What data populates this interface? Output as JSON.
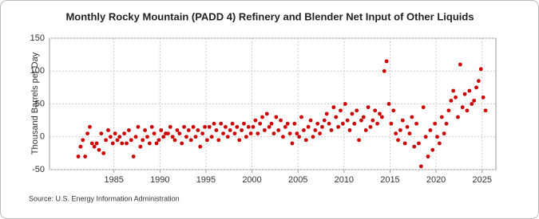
{
  "chart_data": {
    "type": "scatter",
    "title": "Monthly Rocky Mountain (PADD 4) Refinery and Blender Net Input of Other Liquids",
    "ylabel": "Thousand Barrels per Day",
    "source": "Source: U.S. Energy Information Administration",
    "color": "#cc0000",
    "grid": true,
    "xlim": [
      1978,
      2026.5
    ],
    "xticks": [
      1985,
      1990,
      1995,
      2000,
      2005,
      2010,
      2015,
      2020,
      2025
    ],
    "ylim": [
      -50,
      150
    ],
    "yticks": [
      -50,
      0,
      50,
      100,
      150
    ],
    "x": [
      1981.125,
      1981.375,
      1981.625,
      1981.875,
      1982.125,
      1982.375,
      1982.625,
      1982.875,
      1983.125,
      1983.375,
      1983.625,
      1983.875,
      1984.125,
      1984.375,
      1984.625,
      1984.875,
      1985.125,
      1985.375,
      1985.625,
      1985.875,
      1986.125,
      1986.375,
      1986.625,
      1986.875,
      1987.125,
      1987.375,
      1987.625,
      1987.875,
      1988.125,
      1988.375,
      1988.625,
      1988.875,
      1989.125,
      1989.375,
      1989.625,
      1989.875,
      1990.125,
      1990.375,
      1990.625,
      1990.875,
      1991.125,
      1991.375,
      1991.625,
      1991.875,
      1992.125,
      1992.375,
      1992.625,
      1992.875,
      1993.125,
      1993.375,
      1993.625,
      1993.875,
      1994.125,
      1994.375,
      1994.625,
      1994.875,
      1995.125,
      1995.375,
      1995.625,
      1995.875,
      1996.125,
      1996.375,
      1996.625,
      1996.875,
      1997.125,
      1997.375,
      1997.625,
      1997.875,
      1998.125,
      1998.375,
      1998.625,
      1998.875,
      1999.125,
      1999.375,
      1999.625,
      1999.875,
      2000.125,
      2000.375,
      2000.625,
      2000.875,
      2001.125,
      2001.375,
      2001.625,
      2001.875,
      2002.125,
      2002.375,
      2002.625,
      2002.875,
      2003.125,
      2003.375,
      2003.625,
      2003.875,
      2004.125,
      2004.375,
      2004.625,
      2004.875,
      2005.125,
      2005.375,
      2005.625,
      2005.875,
      2006.125,
      2006.375,
      2006.625,
      2006.875,
      2007.125,
      2007.375,
      2007.625,
      2007.875,
      2008.125,
      2008.375,
      2008.625,
      2008.875,
      2009.125,
      2009.375,
      2009.625,
      2009.875,
      2010.125,
      2010.375,
      2010.625,
      2010.875,
      2011.125,
      2011.375,
      2011.625,
      2011.875,
      2012.125,
      2012.375,
      2012.625,
      2012.875,
      2013.125,
      2013.375,
      2013.625,
      2013.875,
      2014.125,
      2014.375,
      2014.625,
      2014.875,
      2015.125,
      2015.375,
      2015.625,
      2015.875,
      2016.125,
      2016.375,
      2016.625,
      2016.875,
      2017.125,
      2017.375,
      2017.625,
      2017.875,
      2018.125,
      2018.375,
      2018.625,
      2018.875,
      2019.125,
      2019.375,
      2019.625,
      2019.875,
      2020.125,
      2020.375,
      2020.625,
      2020.875,
      2021.125,
      2021.375,
      2021.625,
      2021.875,
      2022.125,
      2022.375,
      2022.625,
      2022.875,
      2023.125,
      2023.375,
      2023.625,
      2023.875,
      2024.125,
      2024.375,
      2024.625,
      2024.875,
      2025.125,
      2025.375
    ],
    "values": [
      -30,
      -15,
      -5,
      -30,
      5,
      15,
      -10,
      -15,
      -10,
      -20,
      5,
      -25,
      -5,
      10,
      0,
      -10,
      5,
      -5,
      0,
      -10,
      5,
      -10,
      10,
      -5,
      -30,
      0,
      15,
      -15,
      -5,
      10,
      0,
      -10,
      15,
      5,
      -10,
      -5,
      10,
      0,
      5,
      5,
      15,
      0,
      -5,
      10,
      5,
      -10,
      15,
      0,
      10,
      -5,
      15,
      0,
      10,
      -15,
      5,
      15,
      -5,
      15,
      0,
      20,
      10,
      -5,
      20,
      5,
      15,
      0,
      10,
      20,
      5,
      15,
      -5,
      10,
      20,
      0,
      15,
      5,
      15,
      25,
      5,
      20,
      30,
      10,
      35,
      15,
      20,
      5,
      30,
      10,
      25,
      0,
      15,
      20,
      5,
      -10,
      20,
      5,
      0,
      30,
      10,
      -5,
      15,
      25,
      0,
      10,
      20,
      5,
      15,
      25,
      35,
      20,
      10,
      45,
      30,
      15,
      40,
      20,
      50,
      25,
      10,
      35,
      20,
      40,
      -5,
      25,
      30,
      10,
      45,
      15,
      25,
      40,
      20,
      35,
      30,
      100,
      115,
      50,
      20,
      40,
      5,
      -5,
      10,
      25,
      -10,
      15,
      5,
      30,
      -15,
      20,
      -10,
      -45,
      45,
      0,
      -30,
      10,
      -20,
      20,
      0,
      -10,
      30,
      5,
      20,
      40,
      55,
      70,
      60,
      30,
      110,
      45,
      65,
      40,
      70,
      50,
      55,
      75,
      85,
      103,
      60,
      40
    ]
  }
}
